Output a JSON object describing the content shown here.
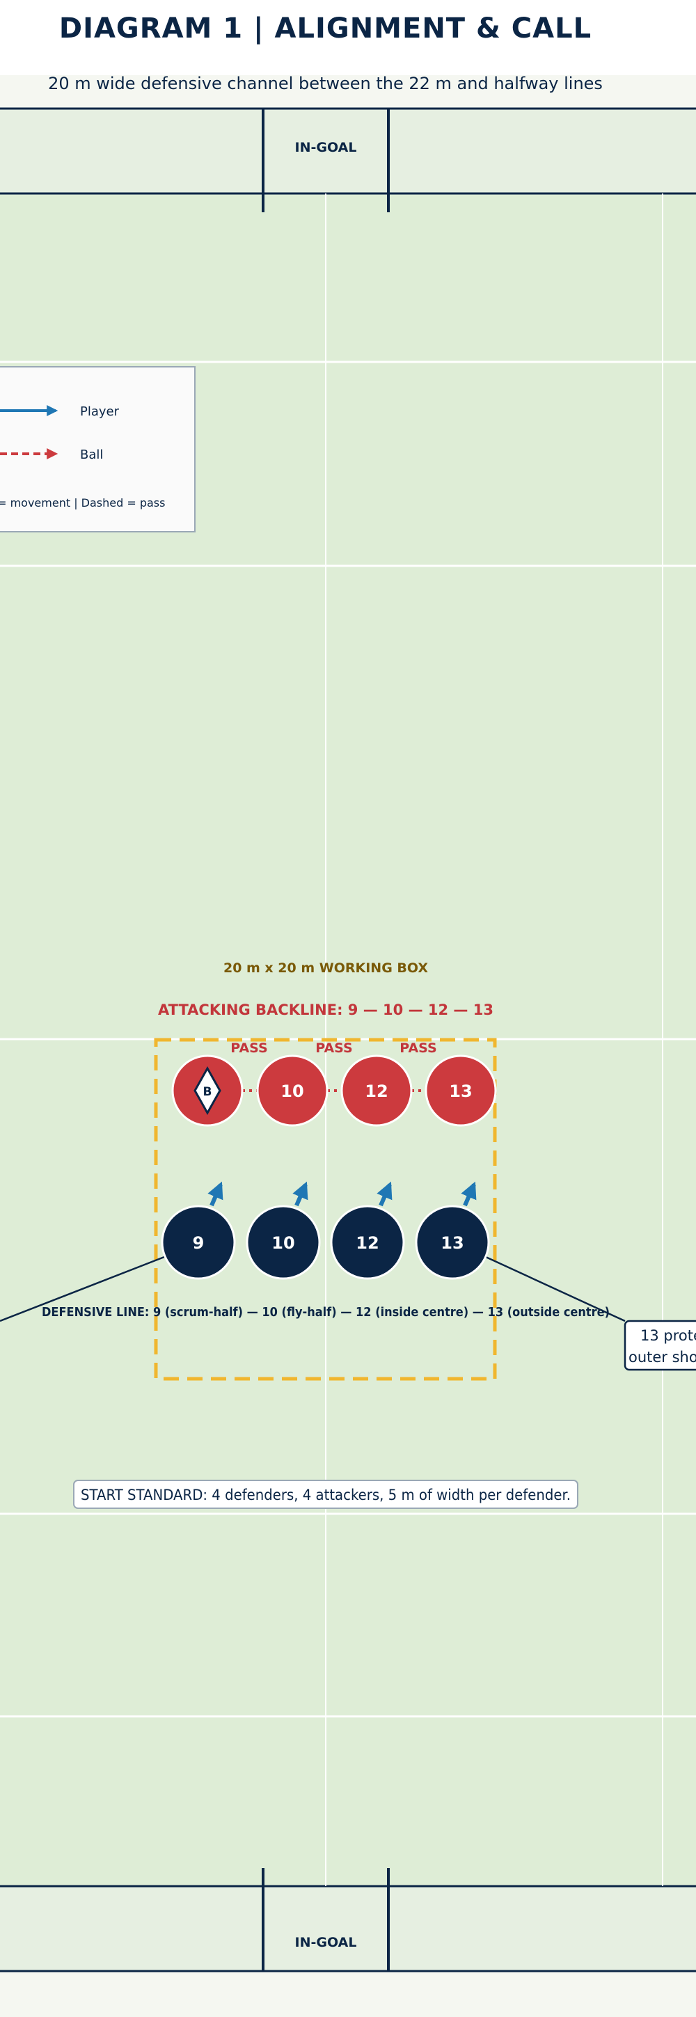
{
  "header": {
    "title": "DIAGRAM 1 | ALIGNMENT & CALL",
    "subtitle": "20 m wide defensive channel between the 22 m and halfway lines"
  },
  "pitch": {
    "top_ingoal_label": "IN-GOAL",
    "bottom_ingoal_label": "IN-GOAL"
  },
  "legend": {
    "player_label": "Player",
    "ball_label": "Ball",
    "note": "Solid = movement | Dashed = pass"
  },
  "working_box": {
    "label": "20 m x 20 m WORKING BOX"
  },
  "attack": {
    "label": "ATTACKING BACKLINE: 9 — 10 — 12 — 13",
    "ball_carrier_marker": "B",
    "players": [
      "",
      "10",
      "12",
      "13"
    ],
    "pass_labels": [
      "PASS",
      "PASS",
      "PASS"
    ]
  },
  "defence": {
    "players": [
      "9",
      "10",
      "12",
      "13"
    ],
    "label": "DEFENSIVE LINE: 9 (scrum-half) — 10 (fly-half) — 12 (inside centre) — 13 (outside centre)"
  },
  "callouts": {
    "right_line1": "13 prote",
    "right_line2": "outer sho",
    "start_standard": "START STANDARD: 4 defenders, 4 attackers, 5 m of width per defender."
  },
  "colors": {
    "field": "#deedd6",
    "ingoal": "#e6efe1",
    "navy": "#0b2545",
    "red": "#cc3a3e",
    "blue_arrow": "#1f77b4",
    "box_gold": "#f0b62f",
    "box_label": "#7a5a08"
  }
}
